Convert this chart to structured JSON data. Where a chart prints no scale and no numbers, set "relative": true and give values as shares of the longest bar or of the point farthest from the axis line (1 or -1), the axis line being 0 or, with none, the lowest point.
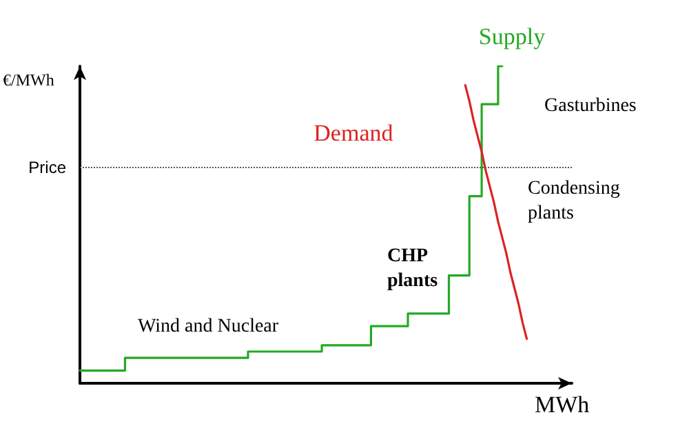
{
  "chart_data": {
    "type": "line",
    "relative": true,
    "xlabel": "MWh",
    "ylabel": "€/MWh",
    "legend": false,
    "grid": false,
    "marker": "none",
    "line_style": "solid",
    "categories": [
      null,
      null,
      null,
      null,
      null,
      null,
      null,
      null,
      null,
      null,
      null,
      null,
      null,
      null,
      null,
      null,
      null,
      null,
      null,
      null,
      null,
      null,
      null,
      null,
      null,
      null,
      null,
      null,
      null,
      null,
      null,
      null,
      null,
      null,
      null,
      null,
      null,
      null,
      null,
      null,
      null,
      null,
      null,
      null,
      null,
      null,
      null,
      null,
      null,
      null,
      null,
      null,
      null,
      null,
      null,
      null,
      null,
      null,
      null,
      null,
      null,
      null,
      null,
      null,
      null,
      null,
      null,
      null,
      null,
      null,
      null,
      null,
      null,
      null,
      null,
      null,
      null,
      null,
      null,
      null,
      null,
      null,
      null,
      null,
      null,
      null,
      null,
      null,
      null,
      null,
      null,
      null,
      null,
      null,
      null,
      null,
      null,
      null,
      null,
      null,
      null,
      null,
      null,
      null,
      null,
      null,
      null,
      null,
      null,
      null,
      null,
      null,
      null,
      null,
      null,
      null,
      null,
      null,
      null,
      null,
      null
    ],
    "series": [
      {
        "name": "Supply",
        "type": "step",
        "color": "#22aa22",
        "values": [
          0.04,
          0.04,
          0.04,
          0.04,
          0.04,
          0.04,
          0.04,
          0.04,
          0.04,
          0.04,
          0.04,
          0.08,
          0.08,
          0.08,
          0.08,
          0.08,
          0.08,
          0.08,
          0.08,
          0.08,
          0.08,
          0.08,
          0.08,
          0.08,
          0.08,
          0.08,
          0.08,
          0.08,
          0.08,
          0.08,
          0.08,
          0.08,
          0.08,
          0.08,
          0.08,
          0.08,
          0.08,
          0.08,
          0.08,
          0.08,
          0.08,
          0.1,
          0.1,
          0.1,
          0.1,
          0.1,
          0.1,
          0.1,
          0.1,
          0.1,
          0.1,
          0.1,
          0.1,
          0.1,
          0.1,
          0.1,
          0.1,
          0.1,
          0.1,
          0.12,
          0.12,
          0.12,
          0.12,
          0.12,
          0.12,
          0.12,
          0.12,
          0.12,
          0.12,
          0.12,
          0.12,
          0.18,
          0.18,
          0.18,
          0.18,
          0.18,
          0.18,
          0.18,
          0.18,
          0.18,
          0.22,
          0.22,
          0.22,
          0.22,
          0.22,
          0.22,
          0.22,
          0.22,
          0.22,
          0.22,
          0.34,
          0.34,
          0.34,
          0.34,
          0.34,
          0.59,
          0.59,
          0.59,
          0.88,
          0.88,
          0.88,
          0.88,
          1.0,
          1.0,
          null,
          null,
          null,
          null,
          null,
          null,
          null,
          null,
          null,
          null,
          null,
          null,
          null,
          null,
          null,
          null,
          null
        ]
      },
      {
        "name": "Demand",
        "color": "#dd2222",
        "values": [
          null,
          null,
          null,
          null,
          null,
          null,
          null,
          null,
          null,
          null,
          null,
          null,
          null,
          null,
          null,
          null,
          null,
          null,
          null,
          null,
          null,
          null,
          null,
          null,
          null,
          null,
          null,
          null,
          null,
          null,
          null,
          null,
          null,
          null,
          null,
          null,
          null,
          null,
          null,
          null,
          null,
          null,
          null,
          null,
          null,
          null,
          null,
          null,
          null,
          null,
          null,
          null,
          null,
          null,
          null,
          null,
          null,
          null,
          null,
          null,
          null,
          null,
          null,
          null,
          null,
          null,
          null,
          null,
          null,
          null,
          null,
          null,
          null,
          null,
          null,
          null,
          null,
          null,
          null,
          null,
          null,
          null,
          null,
          null,
          null,
          null,
          null,
          null,
          null,
          null,
          null,
          null,
          null,
          null,
          0.94,
          0.89,
          0.83,
          0.78,
          0.73,
          0.67,
          0.62,
          0.57,
          0.51,
          0.46,
          0.41,
          0.35,
          0.3,
          0.25,
          0.19,
          0.14,
          null,
          null,
          null,
          null,
          null,
          null,
          null,
          null,
          null,
          null,
          null
        ]
      }
    ],
    "ref_lines": [
      {
        "axis": "y",
        "value": 0.68,
        "label": "Price",
        "color": "#555555",
        "line_style": "dotted"
      }
    ],
    "annotations": [
      "Wind and Nuclear",
      "CHP plants",
      "Condensing plants",
      "Gasturbines"
    ]
  }
}
